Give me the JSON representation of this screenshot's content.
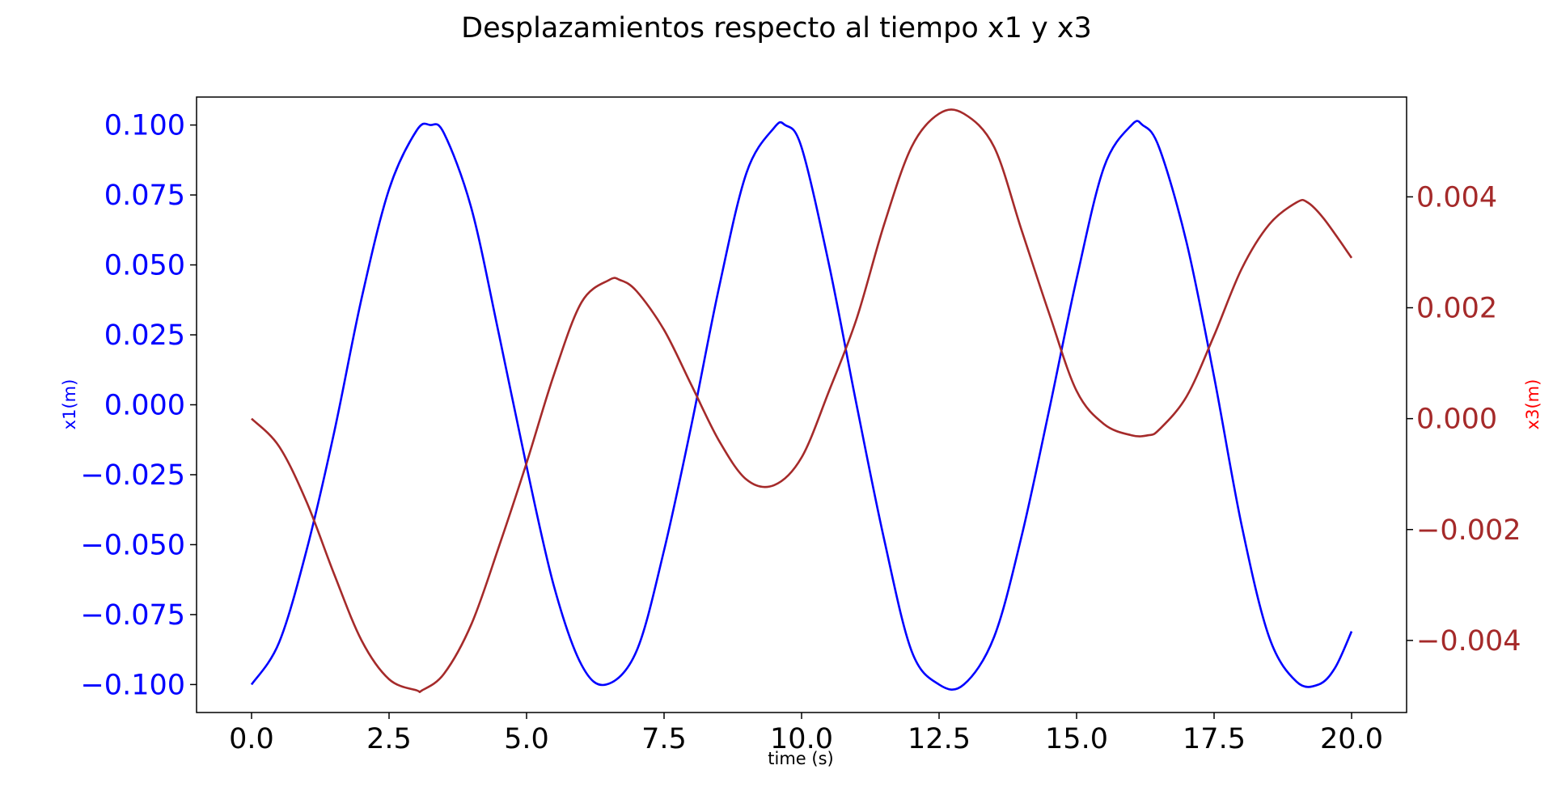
{
  "chart_data": {
    "type": "line",
    "title": "Desplazamientos respecto al tiempo x1 y x3",
    "xlabel": "time (s)",
    "ylabel_left": "x1(m)",
    "ylabel_right": "x3(m)",
    "xlim": [
      -1.0,
      21.0
    ],
    "ylim_left": [
      -0.11,
      0.11
    ],
    "ylim_right": [
      -0.0053,
      0.0058
    ],
    "grid": false,
    "colors": {
      "x1": "#0000ff",
      "x3": "#a52a2a",
      "x1_label": "#0000ff",
      "x3_label": "#ff0000"
    },
    "x_ticks": [
      {
        "value": 0.0,
        "label": "0.0"
      },
      {
        "value": 2.5,
        "label": "2.5"
      },
      {
        "value": 5.0,
        "label": "5.0"
      },
      {
        "value": 7.5,
        "label": "7.5"
      },
      {
        "value": 10.0,
        "label": "10.0"
      },
      {
        "value": 12.5,
        "label": "12.5"
      },
      {
        "value": 15.0,
        "label": "15.0"
      },
      {
        "value": 17.5,
        "label": "17.5"
      },
      {
        "value": 20.0,
        "label": "20.0"
      }
    ],
    "y_ticks_left": [
      {
        "value": 0.1,
        "label": "0.100"
      },
      {
        "value": 0.075,
        "label": "0.075"
      },
      {
        "value": 0.05,
        "label": "0.050"
      },
      {
        "value": 0.025,
        "label": "0.025"
      },
      {
        "value": 0.0,
        "label": "0.000"
      },
      {
        "value": -0.025,
        "label": "−0.025"
      },
      {
        "value": -0.05,
        "label": "−0.050"
      },
      {
        "value": -0.075,
        "label": "−0.075"
      },
      {
        "value": -0.1,
        "label": "−0.100"
      }
    ],
    "y_ticks_right": [
      {
        "value": 0.004,
        "label": "0.004"
      },
      {
        "value": 0.002,
        "label": "0.002"
      },
      {
        "value": 0.0,
        "label": "0.000"
      },
      {
        "value": -0.002,
        "label": "−0.002"
      },
      {
        "value": -0.004,
        "label": "−0.004"
      }
    ],
    "series": [
      {
        "name": "x1",
        "axis": "left",
        "x": [
          0,
          0.5,
          1.0,
          1.5,
          2.0,
          2.5,
          3.0,
          3.25,
          3.5,
          4.0,
          4.5,
          5.0,
          5.5,
          6.0,
          6.45,
          7.0,
          7.5,
          8.0,
          8.5,
          9.0,
          9.5,
          9.7,
          10.0,
          10.5,
          11.0,
          11.5,
          12.0,
          12.5,
          12.95,
          13.5,
          14.0,
          14.5,
          15.0,
          15.5,
          16.0,
          16.2,
          16.5,
          17.0,
          17.5,
          18.0,
          18.5,
          19.0,
          19.4,
          19.7,
          20.0
        ],
        "y": [
          -0.1,
          -0.085,
          -0.052,
          -0.01,
          0.038,
          0.077,
          0.098,
          0.1,
          0.097,
          0.07,
          0.025,
          -0.022,
          -0.065,
          -0.093,
          -0.1,
          -0.088,
          -0.052,
          -0.007,
          0.042,
          0.083,
          0.099,
          0.1,
          0.092,
          0.05,
          0.0,
          -0.048,
          -0.088,
          -0.1,
          -0.1,
          -0.083,
          -0.047,
          -0.002,
          0.045,
          0.085,
          0.1,
          0.1,
          0.092,
          0.058,
          0.01,
          -0.043,
          -0.083,
          -0.099,
          -0.1,
          -0.094,
          -0.081
        ]
      },
      {
        "name": "x3",
        "axis": "right",
        "x": [
          0,
          0.5,
          1.0,
          1.5,
          2.0,
          2.5,
          3.0,
          3.1,
          3.5,
          4.0,
          4.5,
          5.0,
          5.5,
          6.0,
          6.5,
          6.7,
          7.0,
          7.5,
          8.0,
          8.5,
          9.0,
          9.5,
          10.0,
          10.5,
          11.0,
          11.5,
          12.0,
          12.5,
          12.95,
          13.5,
          14.0,
          14.5,
          15.0,
          15.5,
          16.0,
          16.3,
          16.5,
          17.0,
          17.5,
          18.0,
          18.5,
          19.0,
          19.2,
          19.5,
          20.0
        ],
        "y": [
          0.0,
          -0.0005,
          -0.0015,
          -0.0028,
          -0.004,
          -0.0047,
          -0.0049,
          -0.0049,
          -0.0046,
          -0.0037,
          -0.0023,
          -0.0008,
          0.0008,
          0.0021,
          0.0025,
          0.0025,
          0.0023,
          0.0016,
          0.0006,
          -0.0004,
          -0.0011,
          -0.0012,
          -0.0007,
          0.0005,
          0.0018,
          0.0035,
          0.0049,
          0.0055,
          0.0055,
          0.0049,
          0.0034,
          0.0019,
          0.0005,
          -0.0001,
          -0.0003,
          -0.0003,
          -0.0002,
          0.0004,
          0.0015,
          0.0027,
          0.0035,
          0.0039,
          0.0039,
          0.0036,
          0.0029
        ]
      }
    ]
  }
}
